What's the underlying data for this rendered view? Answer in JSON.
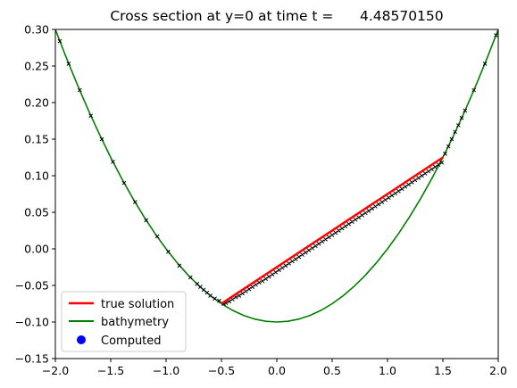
{
  "chart_data": {
    "type": "line",
    "title": "Cross section at y=0 at time t =      4.48570150",
    "xlabel": "",
    "ylabel": "",
    "xlim": [
      -2.0,
      2.0
    ],
    "ylim": [
      -0.15,
      0.3
    ],
    "x_ticks": [
      -2.0,
      -1.5,
      -1.0,
      -0.5,
      0.0,
      0.5,
      1.0,
      1.5,
      2.0
    ],
    "x_tick_labels": [
      "−2.0",
      "−1.5",
      "−1.0",
      "−0.5",
      "0.0",
      "0.5",
      "1.0",
      "1.5",
      "2.0"
    ],
    "y_ticks": [
      -0.15,
      -0.1,
      -0.05,
      0.0,
      0.05,
      0.1,
      0.15,
      0.2,
      0.25,
      0.3
    ],
    "y_tick_labels": [
      "−0.15",
      "−0.10",
      "−0.05",
      "0.00",
      "0.05",
      "0.10",
      "0.15",
      "0.20",
      "0.25",
      "0.30"
    ],
    "grid": false,
    "legend_position": "lower-left",
    "series": [
      {
        "name": "true solution",
        "color": "#ff0000",
        "style": "line",
        "x": [
          -0.5,
          1.5
        ],
        "y": [
          -0.075,
          0.125
        ]
      },
      {
        "name": "bathymetry",
        "color": "#008000",
        "style": "line",
        "formula": "y = 0.1*x^2 - 0.1",
        "x": [
          -2.0,
          -1.9,
          -1.8,
          -1.7,
          -1.6,
          -1.5,
          -1.4,
          -1.3,
          -1.2,
          -1.1,
          -1.0,
          -0.9,
          -0.8,
          -0.7,
          -0.6,
          -0.5,
          -0.4,
          -0.3,
          -0.2,
          -0.1,
          0.0,
          0.1,
          0.2,
          0.3,
          0.4,
          0.5,
          0.6,
          0.7,
          0.8,
          0.9,
          1.0,
          1.1,
          1.2,
          1.3,
          1.4,
          1.5,
          1.6,
          1.7,
          1.8,
          1.9,
          2.0
        ],
        "y": [
          0.3,
          0.261,
          0.224,
          0.189,
          0.156,
          0.125,
          0.096,
          0.069,
          0.044,
          0.021,
          0.0,
          -0.019,
          -0.036,
          -0.051,
          -0.064,
          -0.075,
          -0.084,
          -0.091,
          -0.096,
          -0.099,
          -0.1,
          -0.099,
          -0.096,
          -0.091,
          -0.084,
          -0.075,
          -0.064,
          -0.051,
          -0.036,
          -0.019,
          0.0,
          0.021,
          0.044,
          0.069,
          0.096,
          0.125,
          0.156,
          0.189,
          0.224,
          0.261,
          0.3
        ]
      },
      {
        "name": "Computed",
        "legend_color": "#0000ff",
        "marker_color": "#000000",
        "style": "marker",
        "x": [
          -1.96,
          -1.88,
          -1.78,
          -1.68,
          -1.58,
          -1.48,
          -1.38,
          -1.28,
          -1.18,
          -1.08,
          -0.98,
          -0.88,
          -0.78,
          -0.72,
          -0.69,
          -0.66,
          -0.63,
          -0.6,
          -0.56,
          -0.52,
          -0.48,
          -0.46,
          -0.43,
          -0.4,
          -0.37,
          -0.34,
          -0.31,
          -0.28,
          -0.25,
          -0.22,
          -0.19,
          -0.16,
          -0.13,
          -0.1,
          -0.07,
          -0.04,
          -0.01,
          0.02,
          0.05,
          0.08,
          0.11,
          0.14,
          0.17,
          0.2,
          0.23,
          0.26,
          0.29,
          0.32,
          0.35,
          0.38,
          0.41,
          0.44,
          0.47,
          0.5,
          0.53,
          0.56,
          0.59,
          0.62,
          0.65,
          0.68,
          0.71,
          0.74,
          0.77,
          0.8,
          0.83,
          0.86,
          0.89,
          0.92,
          0.95,
          0.98,
          1.01,
          1.04,
          1.07,
          1.1,
          1.13,
          1.16,
          1.19,
          1.22,
          1.25,
          1.28,
          1.31,
          1.34,
          1.37,
          1.4,
          1.43,
          1.46,
          1.49,
          1.52,
          1.55,
          1.58,
          1.61,
          1.64,
          1.67,
          1.7,
          1.78,
          1.88,
          1.98
        ],
        "y": [
          0.284,
          0.253,
          0.217,
          0.182,
          0.15,
          0.119,
          0.09,
          0.064,
          0.039,
          0.017,
          -0.004,
          -0.023,
          -0.039,
          -0.048,
          -0.052,
          -0.056,
          -0.06,
          -0.064,
          -0.068,
          -0.071,
          -0.075,
          -0.074,
          -0.072,
          -0.069,
          -0.066,
          -0.064,
          -0.061,
          -0.058,
          -0.055,
          -0.052,
          -0.049,
          -0.046,
          -0.044,
          -0.041,
          -0.038,
          -0.035,
          -0.032,
          -0.029,
          -0.026,
          -0.023,
          -0.02,
          -0.017,
          -0.014,
          -0.011,
          -0.008,
          -0.005,
          -0.002,
          0.001,
          0.004,
          0.007,
          0.01,
          0.013,
          0.016,
          0.019,
          0.022,
          0.025,
          0.028,
          0.031,
          0.034,
          0.037,
          0.04,
          0.043,
          0.046,
          0.049,
          0.052,
          0.055,
          0.058,
          0.061,
          0.064,
          0.067,
          0.07,
          0.073,
          0.076,
          0.079,
          0.082,
          0.085,
          0.088,
          0.091,
          0.094,
          0.097,
          0.1,
          0.103,
          0.106,
          0.109,
          0.112,
          0.115,
          0.118,
          0.13,
          0.14,
          0.15,
          0.16,
          0.169,
          0.179,
          0.189,
          0.217,
          0.253,
          0.292
        ]
      }
    ]
  }
}
